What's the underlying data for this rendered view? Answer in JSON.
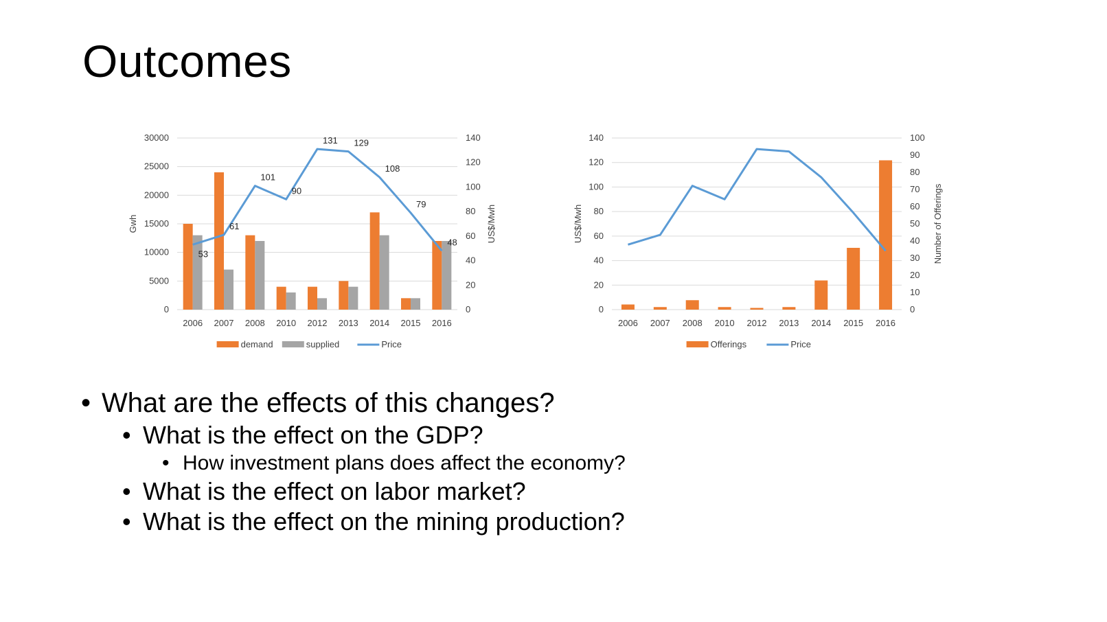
{
  "slide": {
    "title": "Outcomes",
    "bullet_char": "•",
    "bullets": [
      {
        "level": 1,
        "text": "What are the effects of this changes?"
      },
      {
        "level": 2,
        "text": "What is the effect on the GDP?"
      },
      {
        "level": 3,
        "text": "How investment plans does affect the economy?"
      },
      {
        "level": 2,
        "text": "What is the effect on labor market?"
      },
      {
        "level": 2,
        "text": "What is the effect on the mining production?"
      }
    ]
  },
  "colors": {
    "orange": "#ED7D31",
    "gray": "#A5A5A5",
    "blue": "#5B9BD5"
  },
  "chart_data": [
    {
      "type": "bar",
      "categories": [
        "2006",
        "2007",
        "2008",
        "2010",
        "2012",
        "2013",
        "2014",
        "2015",
        "2016"
      ],
      "series": [
        {
          "name": "demand",
          "type": "bar",
          "axis": "left",
          "color": "#ED7D31",
          "values": [
            15000,
            24000,
            13000,
            4000,
            4000,
            5000,
            17000,
            2000,
            12000
          ]
        },
        {
          "name": "supplied",
          "type": "bar",
          "axis": "left",
          "color": "#A5A5A5",
          "values": [
            13000,
            7000,
            12000,
            3000,
            2000,
            4000,
            13000,
            2000,
            12000
          ]
        },
        {
          "name": "Price",
          "type": "line",
          "axis": "right",
          "color": "#5B9BD5",
          "values": [
            53,
            61,
            101,
            90,
            131,
            129,
            108,
            79,
            48
          ],
          "data_labels": [
            "53",
            "61",
            "101",
            "90",
            "131",
            "129",
            "108",
            "79",
            "48"
          ]
        }
      ],
      "ylabel": "Gwh",
      "y2label": "US$/Mwh",
      "ylim": [
        0,
        30000
      ],
      "y2lim": [
        0,
        140
      ],
      "yticks": [
        "0",
        "5000",
        "10000",
        "15000",
        "20000",
        "25000",
        "30000"
      ],
      "y2ticks": [
        "0",
        "20",
        "40",
        "60",
        "80",
        "100",
        "120",
        "140"
      ],
      "grid": true,
      "legend": "bottom"
    },
    {
      "type": "bar",
      "categories": [
        "2006",
        "2007",
        "2008",
        "2010",
        "2012",
        "2013",
        "2014",
        "2015",
        "2016"
      ],
      "series": [
        {
          "name": "Offerings",
          "type": "bar",
          "axis": "right",
          "color": "#ED7D31",
          "values": [
            3,
            1.5,
            5.5,
            1.5,
            1,
            1.5,
            17,
            36,
            87
          ]
        },
        {
          "name": "Price",
          "type": "line",
          "axis": "left",
          "color": "#5B9BD5",
          "values": [
            53,
            61,
            101,
            90,
            131,
            129,
            108,
            79,
            48
          ]
        }
      ],
      "ylabel": "US$/Mwh",
      "y2label": "Number of Offerings",
      "ylim": [
        0,
        140
      ],
      "y2lim": [
        0,
        100
      ],
      "yticks": [
        "0",
        "20",
        "40",
        "60",
        "80",
        "100",
        "120",
        "140"
      ],
      "y2ticks": [
        "0",
        "10",
        "20",
        "30",
        "40",
        "50",
        "60",
        "70",
        "80",
        "90",
        "100"
      ],
      "grid": true,
      "legend": "bottom"
    }
  ]
}
